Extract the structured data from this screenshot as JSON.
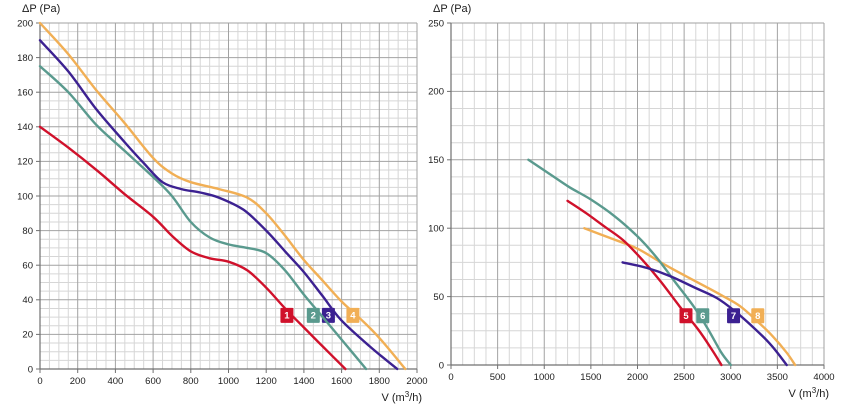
{
  "page": {
    "background_color": "#ffffff",
    "description_texts": {
      "left_y_title": "ΔP (Pa)",
      "left_x_title": "V (m³/h)",
      "right_y_title": "ΔP (Pa)",
      "right_x_title": "V (m³/h)"
    }
  },
  "colors": {
    "grid_minor": "#d6d6d6",
    "grid_major": "#a2a2a2",
    "axis_line": "#707070",
    "text": "#1c1c1c",
    "series_red": "#d0112b",
    "series_teal": "#5a9a8e",
    "series_purple": "#3c2191",
    "series_orange": "#f1af55"
  },
  "chart_data": [
    {
      "type": "line",
      "id": "left-fan-curves",
      "grid": "on",
      "legend_position": "none",
      "y_axis": {
        "label": "ΔP (Pa)",
        "min": 0,
        "max": 200,
        "major_step": 20,
        "minor_step": 5,
        "ticks": [
          "0",
          "20",
          "40",
          "60",
          "80",
          "100",
          "120",
          "140",
          "160",
          "180",
          "200"
        ]
      },
      "x_axis": {
        "label": "V (m³/h)",
        "label_parts": {
          "pre": "V (m",
          "sup": "3",
          "post": "/h)"
        },
        "min": 0,
        "max": 2000,
        "major_step": 200,
        "minor_step": 50,
        "ticks": [
          "0",
          "200",
          "400",
          "600",
          "800",
          "1000",
          "1200",
          "1400",
          "1600",
          "1800",
          "2000"
        ]
      },
      "series": [
        {
          "name": "curve-1",
          "badge": "1",
          "color": "#d0112b",
          "badge_v": 1310,
          "badge_dp": 31,
          "points": [
            [
              0,
              140
            ],
            [
              150,
              128
            ],
            [
              300,
              115
            ],
            [
              450,
              101
            ],
            [
              600,
              88
            ],
            [
              700,
              77
            ],
            [
              800,
              68
            ],
            [
              900,
              64
            ],
            [
              1000,
              62
            ],
            [
              1100,
              57
            ],
            [
              1200,
              47
            ],
            [
              1300,
              35
            ],
            [
              1400,
              24
            ],
            [
              1500,
              13
            ],
            [
              1620,
              0
            ]
          ]
        },
        {
          "name": "curve-2",
          "badge": "2",
          "color": "#5a9a8e",
          "badge_v": 1450,
          "badge_dp": 31,
          "points": [
            [
              0,
              175
            ],
            [
              150,
              160
            ],
            [
              300,
              141
            ],
            [
              450,
              126
            ],
            [
              600,
              111
            ],
            [
              700,
              100
            ],
            [
              800,
              85
            ],
            [
              900,
              76
            ],
            [
              1000,
              72
            ],
            [
              1100,
              70
            ],
            [
              1200,
              67
            ],
            [
              1300,
              57
            ],
            [
              1400,
              43
            ],
            [
              1500,
              30
            ],
            [
              1600,
              17
            ],
            [
              1730,
              0
            ]
          ]
        },
        {
          "name": "curve-3",
          "badge": "3",
          "color": "#3c2191",
          "badge_v": 1530,
          "badge_dp": 31,
          "points": [
            [
              0,
              190
            ],
            [
              150,
              172
            ],
            [
              300,
              150
            ],
            [
              450,
              131
            ],
            [
              550,
              119
            ],
            [
              650,
              108
            ],
            [
              750,
              104
            ],
            [
              850,
              102
            ],
            [
              950,
              99
            ],
            [
              1080,
              92
            ],
            [
              1200,
              80
            ],
            [
              1300,
              68
            ],
            [
              1400,
              56
            ],
            [
              1500,
              42
            ],
            [
              1600,
              28
            ],
            [
              1750,
              13
            ],
            [
              1895,
              0
            ]
          ]
        },
        {
          "name": "curve-4",
          "badge": "4",
          "color": "#f1af55",
          "badge_v": 1660,
          "badge_dp": 31,
          "points": [
            [
              0,
              200
            ],
            [
              150,
              182
            ],
            [
              300,
              161
            ],
            [
              450,
              142
            ],
            [
              600,
              122
            ],
            [
              700,
              113
            ],
            [
              800,
              108
            ],
            [
              950,
              104
            ],
            [
              1100,
              99
            ],
            [
              1200,
              90
            ],
            [
              1300,
              77
            ],
            [
              1400,
              63
            ],
            [
              1500,
              51
            ],
            [
              1600,
              39
            ],
            [
              1700,
              29
            ],
            [
              1800,
              18
            ],
            [
              1938,
              0
            ]
          ]
        }
      ]
    },
    {
      "type": "line",
      "id": "right-fan-curves",
      "grid": "on",
      "legend_position": "none",
      "y_axis": {
        "label": "ΔP (Pa)",
        "min": 0,
        "max": 250,
        "major_step": 50,
        "minor_step": 12.5,
        "ticks": [
          "0",
          "50",
          "100",
          "150",
          "200",
          "250"
        ]
      },
      "x_axis": {
        "label": "V (m³/h)",
        "label_parts": {
          "pre": "V (m",
          "sup": "3",
          "post": "/h)"
        },
        "min": 0,
        "max": 4000,
        "major_step": 500,
        "minor_step": 125,
        "ticks": [
          "0",
          "500",
          "1000",
          "1500",
          "2000",
          "2500",
          "3000",
          "3500",
          "4000"
        ]
      },
      "series": [
        {
          "name": "curve-5",
          "badge": "5",
          "color": "#d0112b",
          "badge_v": 2520,
          "badge_dp": 36,
          "points": [
            [
              1250,
              120
            ],
            [
              1450,
              111
            ],
            [
              1650,
              101
            ],
            [
              1850,
              91
            ],
            [
              2050,
              77
            ],
            [
              2250,
              61
            ],
            [
              2450,
              43
            ],
            [
              2650,
              26
            ],
            [
              2800,
              11
            ],
            [
              2900,
              0
            ]
          ]
        },
        {
          "name": "curve-6",
          "badge": "6",
          "color": "#5a9a8e",
          "badge_v": 2700,
          "badge_dp": 36,
          "points": [
            [
              830,
              150
            ],
            [
              1050,
              140
            ],
            [
              1270,
              130
            ],
            [
              1500,
              121
            ],
            [
              1750,
              109
            ],
            [
              2000,
              94
            ],
            [
              2200,
              79
            ],
            [
              2400,
              61
            ],
            [
              2600,
              43
            ],
            [
              2750,
              27
            ],
            [
              2900,
              9
            ],
            [
              3000,
              0
            ]
          ]
        },
        {
          "name": "curve-7",
          "badge": "7",
          "color": "#3c2191",
          "badge_v": 3030,
          "badge_dp": 36,
          "points": [
            [
              1840,
              75
            ],
            [
              2100,
              71
            ],
            [
              2350,
              65
            ],
            [
              2600,
              57
            ],
            [
              2850,
              49
            ],
            [
              3050,
              39
            ],
            [
              3250,
              27
            ],
            [
              3400,
              17
            ],
            [
              3500,
              9
            ],
            [
              3600,
              0
            ]
          ]
        },
        {
          "name": "curve-8",
          "badge": "8",
          "color": "#f1af55",
          "badge_v": 3290,
          "badge_dp": 36,
          "points": [
            [
              1430,
              100
            ],
            [
              1700,
              93
            ],
            [
              2000,
              85
            ],
            [
              2300,
              73
            ],
            [
              2600,
              62
            ],
            [
              2900,
              51
            ],
            [
              3100,
              43
            ],
            [
              3300,
              31
            ],
            [
              3450,
              21
            ],
            [
              3600,
              9
            ],
            [
              3690,
              0
            ]
          ]
        }
      ]
    }
  ]
}
